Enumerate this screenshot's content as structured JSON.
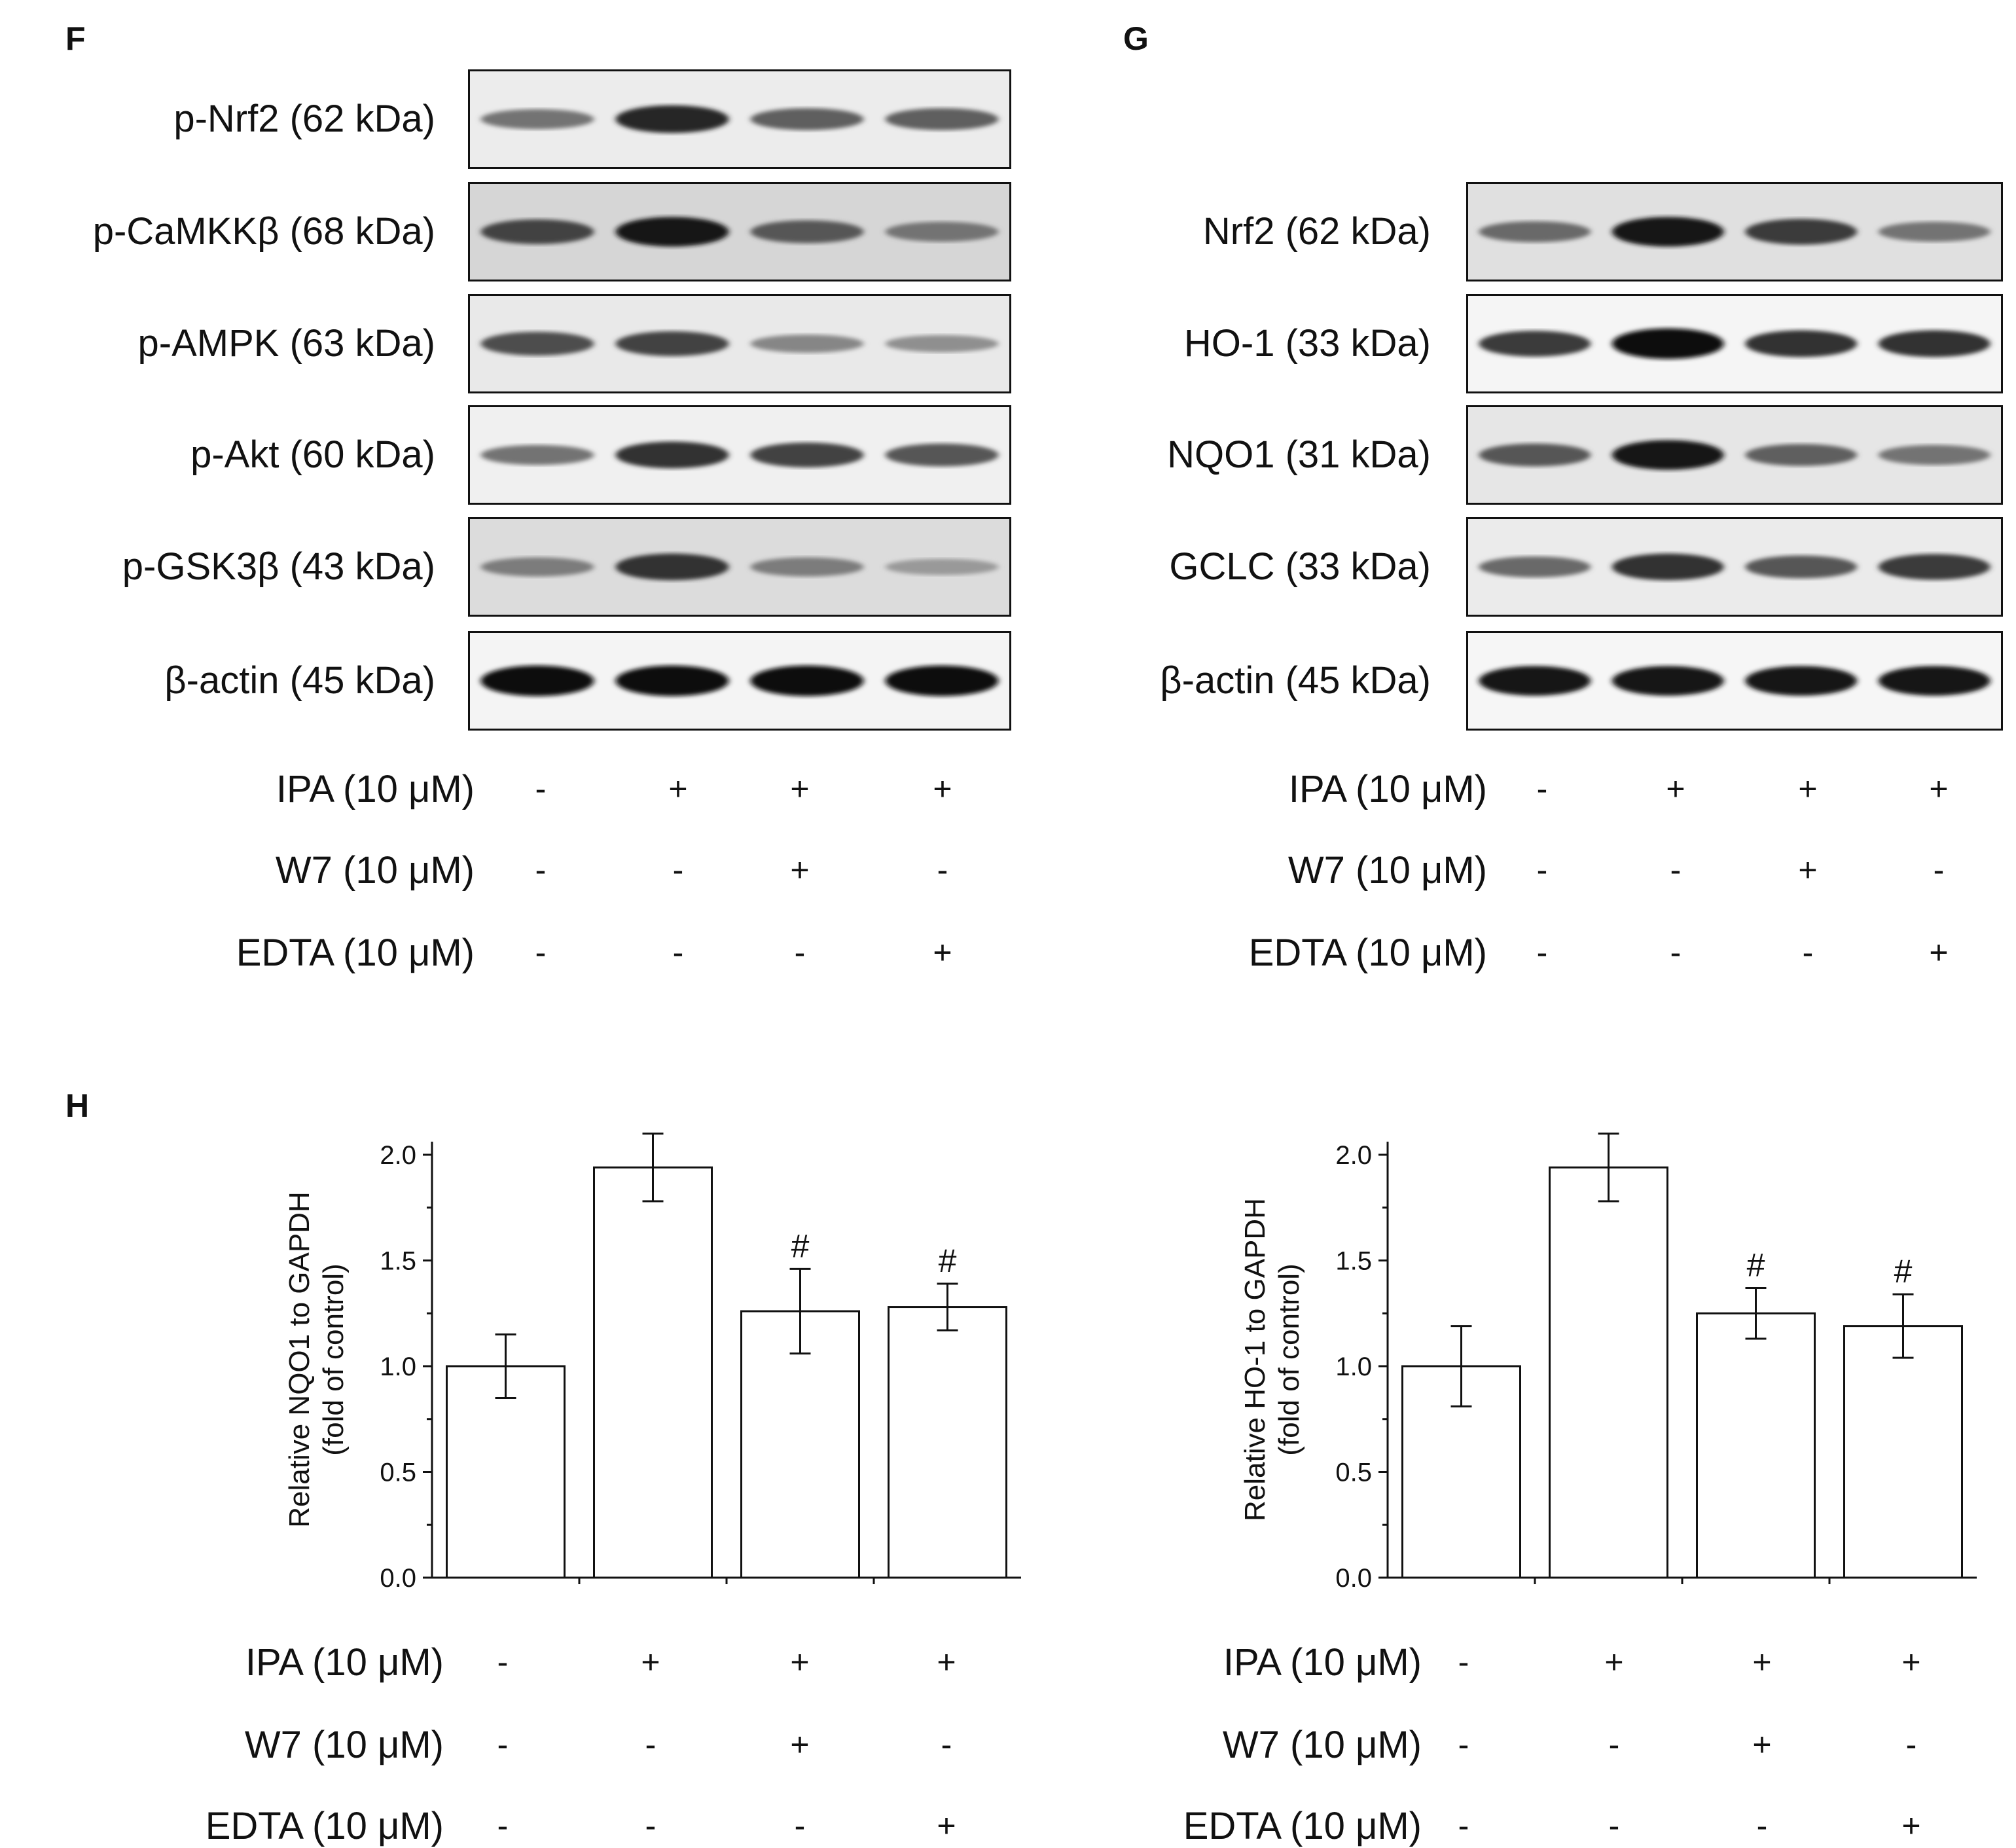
{
  "panels": {
    "f": "F",
    "g": "G",
    "h": "H"
  },
  "blots_f": [
    {
      "label": "p-Nrf2 (62 kDa)",
      "bg": "#ececec",
      "intensity": [
        0.45,
        0.85,
        0.55,
        0.55
      ]
    },
    {
      "label": "p-CaMKKβ (68 kDa)",
      "bg": "#d6d6d6",
      "intensity": [
        0.7,
        0.95,
        0.6,
        0.45
      ]
    },
    {
      "label": "p-AMPK (63 kDa)",
      "bg": "#e9e9e9",
      "intensity": [
        0.65,
        0.7,
        0.35,
        0.3
      ]
    },
    {
      "label": "p-Akt (60 kDa)",
      "bg": "#f0f0f0",
      "intensity": [
        0.45,
        0.8,
        0.7,
        0.6
      ]
    },
    {
      "label": "p-GSK3β (43 kDa)",
      "bg": "#dcdcdc",
      "intensity": [
        0.4,
        0.8,
        0.4,
        0.25
      ]
    },
    {
      "label": "β-actin (45 kDa)",
      "bg": "#f4f4f4",
      "intensity": [
        1.0,
        1.0,
        1.0,
        1.0
      ]
    }
  ],
  "blots_g": [
    {
      "label": "Nrf2 (62 kDa)",
      "bg": "#e0e0e0",
      "intensity": [
        0.5,
        0.95,
        0.75,
        0.45
      ]
    },
    {
      "label": "HO-1 (33 kDa)",
      "bg": "#f5f5f5",
      "intensity": [
        0.75,
        1.0,
        0.8,
        0.8
      ]
    },
    {
      "label": "NQO1 (31 kDa)",
      "bg": "#e6e6e6",
      "intensity": [
        0.6,
        0.95,
        0.55,
        0.45
      ]
    },
    {
      "label": "GCLC (33 kDa)",
      "bg": "#ebebeb",
      "intensity": [
        0.5,
        0.8,
        0.6,
        0.75
      ]
    },
    {
      "label": "β-actin (45 kDa)",
      "bg": "#f6f6f6",
      "intensity": [
        0.95,
        0.95,
        0.95,
        0.95
      ]
    }
  ],
  "treatments": {
    "rows": [
      {
        "label": "IPA (10 μM)",
        "signs": [
          "-",
          "+",
          "+",
          "+"
        ]
      },
      {
        "label": "W7 (10 μM)",
        "signs": [
          "-",
          "-",
          "+",
          "-"
        ]
      },
      {
        "label": "EDTA (10 μM)",
        "signs": [
          "-",
          "-",
          "-",
          "+"
        ]
      }
    ]
  },
  "chart_data": [
    {
      "type": "bar",
      "ylabel_line1": "Relative NQO1 to GAPDH",
      "ylabel_line2": "(fold of control)",
      "ylim": [
        0,
        2.0
      ],
      "yticks": [
        "0.0",
        "0.5",
        "1.0",
        "1.5",
        "2.0"
      ],
      "values": [
        1.0,
        1.94,
        1.26,
        1.28
      ],
      "errors": [
        0.15,
        0.16,
        0.2,
        0.11
      ],
      "annotations": [
        "",
        "*",
        "#",
        "#"
      ]
    },
    {
      "type": "bar",
      "ylabel_line1": "Relative HO-1 to GAPDH",
      "ylabel_line2": "(fold of control)",
      "ylim": [
        0,
        2.0
      ],
      "yticks": [
        "0.0",
        "0.5",
        "1.0",
        "1.5",
        "2.0"
      ],
      "values": [
        1.0,
        1.94,
        1.25,
        1.19
      ],
      "errors": [
        0.19,
        0.16,
        0.12,
        0.15
      ],
      "annotations": [
        "",
        "*",
        "#",
        "#"
      ]
    }
  ]
}
